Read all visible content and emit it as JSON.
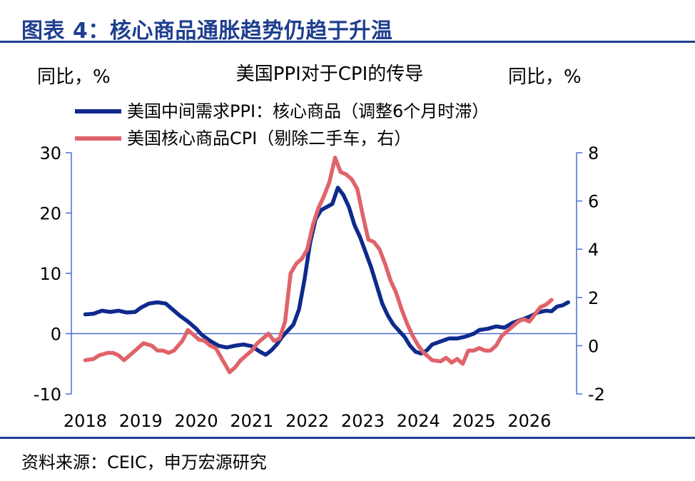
{
  "figure": {
    "title": "图表 4：核心商品通胀趋势仍趋于升温",
    "source": "资料来源：CEIC，申万宏源研究"
  },
  "chart_data": {
    "type": "line",
    "title": "美国PPI对于CPI的传导",
    "ylabel_left": "同比，%",
    "ylabel_right": "同比，%",
    "x_tick_labels": [
      "2018",
      "2019",
      "2020",
      "2021",
      "2022",
      "2023",
      "2024",
      "2025",
      "2026"
    ],
    "y_left": {
      "range": [
        -10,
        30
      ],
      "ticks": [
        -10,
        0,
        10,
        20,
        30
      ]
    },
    "y_right": {
      "range": [
        -2,
        8
      ],
      "ticks": [
        -2,
        0,
        2,
        4,
        6,
        8
      ]
    },
    "series": [
      {
        "name": "美国中间需求PPI：核心商品（调整6个月时滞）",
        "axis": "left",
        "color": "#0e2a8c",
        "points": [
          [
            2018.0,
            3.2
          ],
          [
            2018.15,
            3.3
          ],
          [
            2018.3,
            3.8
          ],
          [
            2018.45,
            3.6
          ],
          [
            2018.6,
            3.8
          ],
          [
            2018.75,
            3.5
          ],
          [
            2018.9,
            3.6
          ],
          [
            2019.0,
            4.3
          ],
          [
            2019.15,
            5.0
          ],
          [
            2019.3,
            5.2
          ],
          [
            2019.45,
            5.0
          ],
          [
            2019.55,
            4.2
          ],
          [
            2019.7,
            3.0
          ],
          [
            2019.85,
            2.0
          ],
          [
            2020.0,
            0.8
          ],
          [
            2020.1,
            -0.2
          ],
          [
            2020.25,
            -1.2
          ],
          [
            2020.4,
            -2.0
          ],
          [
            2020.55,
            -2.3
          ],
          [
            2020.7,
            -2.0
          ],
          [
            2020.85,
            -1.8
          ],
          [
            2021.0,
            -2.1
          ],
          [
            2021.15,
            -3.0
          ],
          [
            2021.25,
            -3.5
          ],
          [
            2021.35,
            -2.8
          ],
          [
            2021.45,
            -1.8
          ],
          [
            2021.55,
            -0.5
          ],
          [
            2021.65,
            0.5
          ],
          [
            2021.75,
            1.5
          ],
          [
            2021.85,
            4.0
          ],
          [
            2021.95,
            9.0
          ],
          [
            2022.05,
            15.0
          ],
          [
            2022.15,
            19.0
          ],
          [
            2022.25,
            20.5
          ],
          [
            2022.35,
            21.0
          ],
          [
            2022.45,
            21.5
          ],
          [
            2022.55,
            24.2
          ],
          [
            2022.65,
            23.0
          ],
          [
            2022.75,
            21.0
          ],
          [
            2022.85,
            18.0
          ],
          [
            2022.95,
            16.0
          ],
          [
            2023.05,
            13.5
          ],
          [
            2023.15,
            11.0
          ],
          [
            2023.25,
            8.0
          ],
          [
            2023.35,
            5.0
          ],
          [
            2023.45,
            3.0
          ],
          [
            2023.55,
            1.5
          ],
          [
            2023.65,
            0.5
          ],
          [
            2023.75,
            -0.5
          ],
          [
            2023.85,
            -2.0
          ],
          [
            2023.95,
            -3.0
          ],
          [
            2024.05,
            -3.3
          ],
          [
            2024.15,
            -2.8
          ],
          [
            2024.25,
            -1.8
          ],
          [
            2024.4,
            -1.3
          ],
          [
            2024.55,
            -0.8
          ],
          [
            2024.7,
            -0.8
          ],
          [
            2024.85,
            -0.5
          ],
          [
            2025.0,
            0.0
          ],
          [
            2025.1,
            0.6
          ],
          [
            2025.25,
            0.8
          ],
          [
            2025.4,
            1.2
          ],
          [
            2025.55,
            1.0
          ],
          [
            2025.7,
            1.8
          ],
          [
            2025.85,
            2.3
          ],
          [
            2026.0,
            2.8
          ],
          [
            2026.15,
            3.5
          ],
          [
            2026.3,
            3.8
          ],
          [
            2026.4,
            3.7
          ],
          [
            2026.5,
            4.5
          ],
          [
            2026.6,
            4.7
          ],
          [
            2026.7,
            5.2
          ]
        ]
      },
      {
        "name": "美国核心商品CPI（剔除二手车，右）",
        "axis": "right",
        "color": "#e0636a",
        "points": [
          [
            2018.0,
            -0.6
          ],
          [
            2018.15,
            -0.55
          ],
          [
            2018.25,
            -0.4
          ],
          [
            2018.4,
            -0.3
          ],
          [
            2018.5,
            -0.3
          ],
          [
            2018.6,
            -0.4
          ],
          [
            2018.7,
            -0.6
          ],
          [
            2018.8,
            -0.4
          ],
          [
            2018.9,
            -0.2
          ],
          [
            2019.05,
            0.1
          ],
          [
            2019.2,
            0.0
          ],
          [
            2019.3,
            -0.2
          ],
          [
            2019.4,
            -0.2
          ],
          [
            2019.5,
            -0.3
          ],
          [
            2019.6,
            -0.2
          ],
          [
            2019.75,
            0.2
          ],
          [
            2019.85,
            0.65
          ],
          [
            2019.95,
            0.45
          ],
          [
            2020.05,
            0.25
          ],
          [
            2020.15,
            0.2
          ],
          [
            2020.25,
            0.0
          ],
          [
            2020.35,
            -0.1
          ],
          [
            2020.45,
            -0.5
          ],
          [
            2020.55,
            -0.9
          ],
          [
            2020.6,
            -1.1
          ],
          [
            2020.7,
            -0.9
          ],
          [
            2020.8,
            -0.6
          ],
          [
            2020.9,
            -0.4
          ],
          [
            2021.0,
            -0.2
          ],
          [
            2021.1,
            0.1
          ],
          [
            2021.2,
            0.3
          ],
          [
            2021.3,
            0.5
          ],
          [
            2021.4,
            0.2
          ],
          [
            2021.5,
            0.3
          ],
          [
            2021.6,
            1.0
          ],
          [
            2021.7,
            3.0
          ],
          [
            2021.8,
            3.4
          ],
          [
            2021.9,
            3.6
          ],
          [
            2022.0,
            4.0
          ],
          [
            2022.1,
            5.0
          ],
          [
            2022.2,
            5.7
          ],
          [
            2022.3,
            6.2
          ],
          [
            2022.4,
            6.8
          ],
          [
            2022.5,
            7.8
          ],
          [
            2022.6,
            7.2
          ],
          [
            2022.7,
            7.1
          ],
          [
            2022.8,
            6.9
          ],
          [
            2022.9,
            6.5
          ],
          [
            2023.0,
            5.4
          ],
          [
            2023.1,
            4.4
          ],
          [
            2023.2,
            4.3
          ],
          [
            2023.3,
            4.0
          ],
          [
            2023.4,
            3.4
          ],
          [
            2023.5,
            2.7
          ],
          [
            2023.6,
            2.2
          ],
          [
            2023.7,
            1.5
          ],
          [
            2023.8,
            0.9
          ],
          [
            2023.9,
            0.4
          ],
          [
            2024.0,
            0.0
          ],
          [
            2024.1,
            -0.3
          ],
          [
            2024.25,
            -0.6
          ],
          [
            2024.4,
            -0.65
          ],
          [
            2024.5,
            -0.5
          ],
          [
            2024.6,
            -0.7
          ],
          [
            2024.7,
            -0.55
          ],
          [
            2024.8,
            -0.75
          ],
          [
            2024.9,
            -0.2
          ],
          [
            2025.0,
            -0.2
          ],
          [
            2025.1,
            -0.1
          ],
          [
            2025.2,
            -0.2
          ],
          [
            2025.3,
            -0.2
          ],
          [
            2025.4,
            0.0
          ],
          [
            2025.5,
            0.4
          ],
          [
            2025.6,
            0.6
          ],
          [
            2025.7,
            0.8
          ],
          [
            2025.8,
            1.0
          ],
          [
            2025.9,
            1.1
          ],
          [
            2026.0,
            1.0
          ],
          [
            2026.1,
            1.3
          ],
          [
            2026.2,
            1.6
          ],
          [
            2026.3,
            1.7
          ],
          [
            2026.4,
            1.9
          ]
        ]
      }
    ],
    "legend_position": "top-left"
  }
}
